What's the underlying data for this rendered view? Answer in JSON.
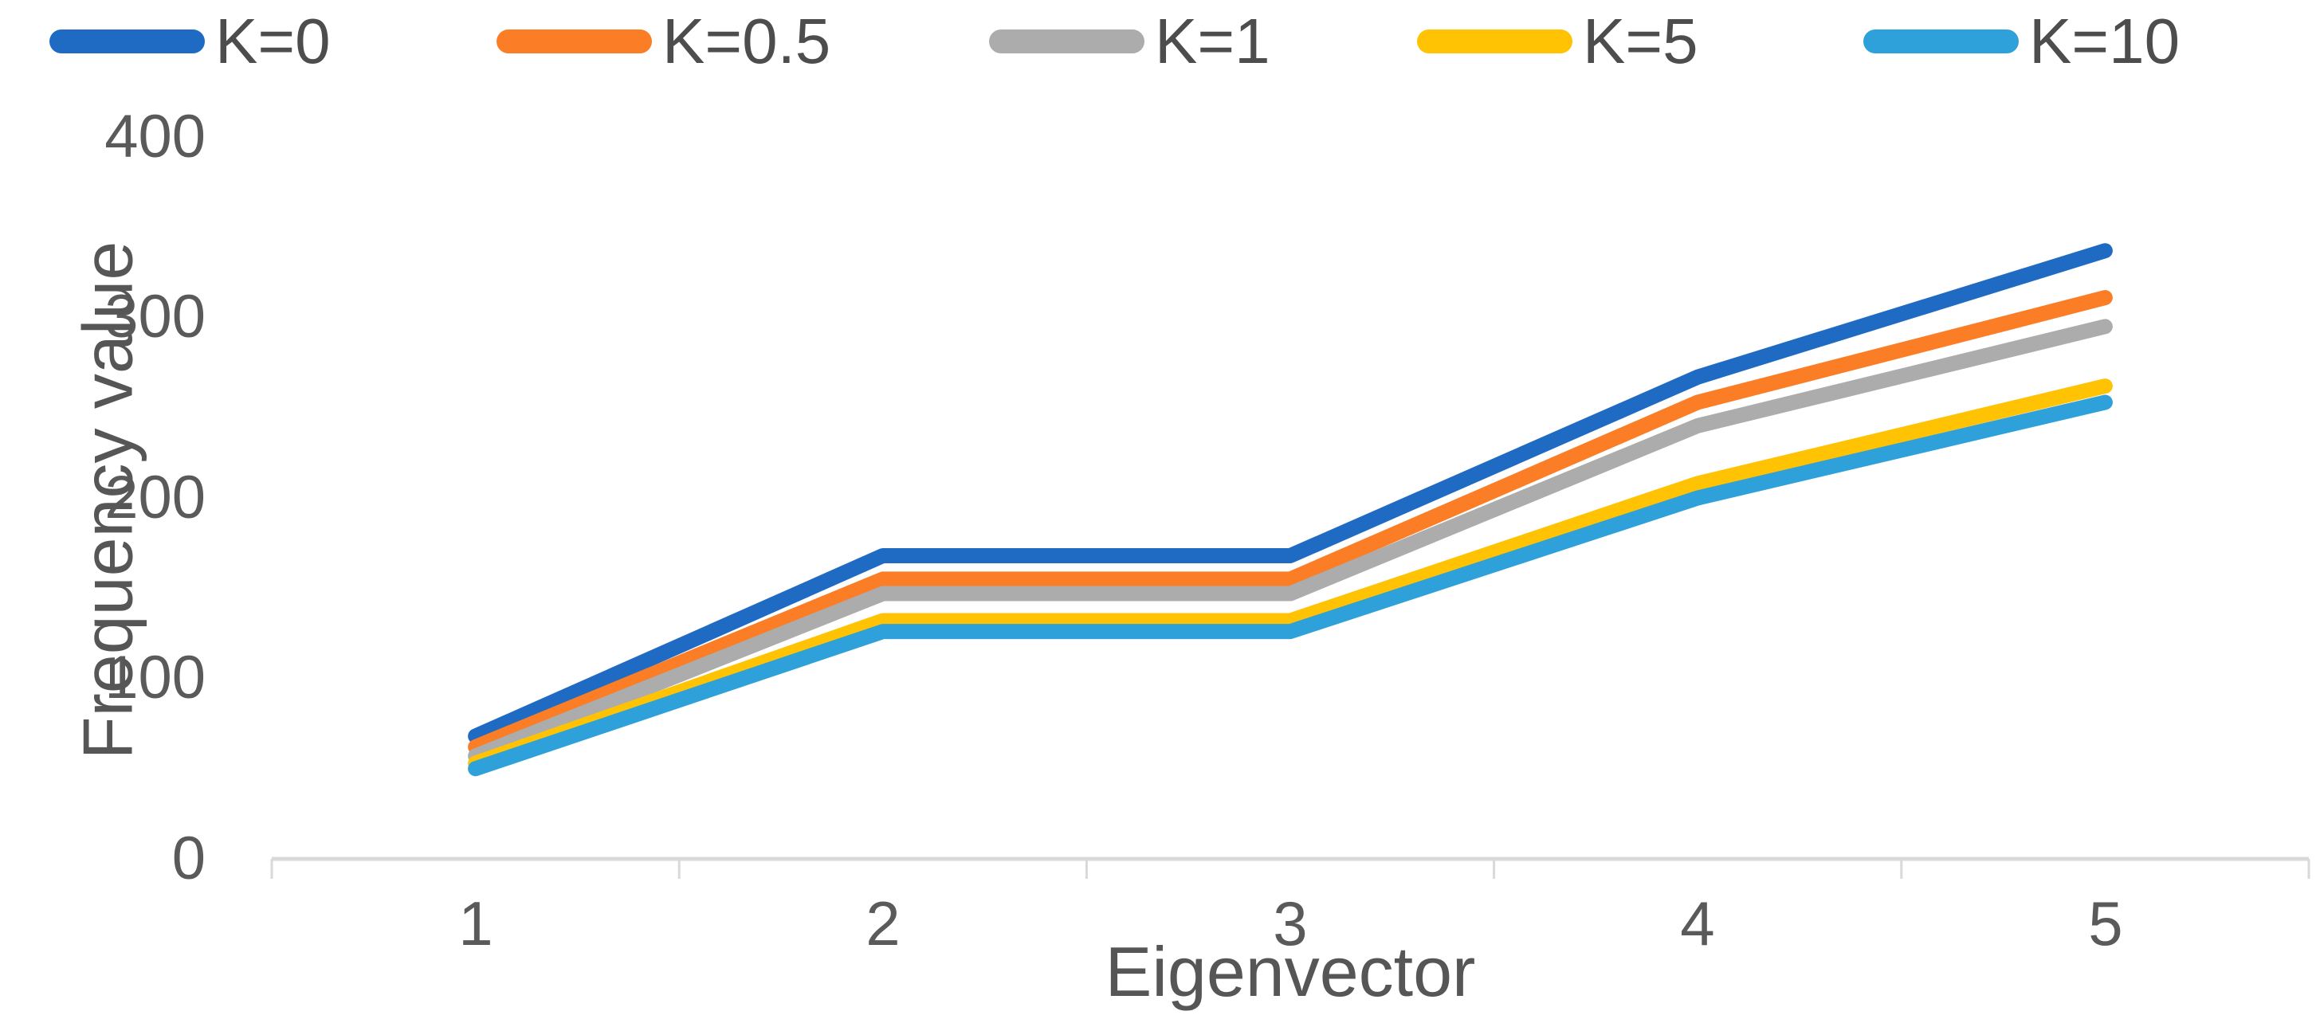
{
  "chart_data": {
    "type": "line",
    "title": "",
    "xlabel": "Eigenvector",
    "ylabel": "Frequency value",
    "x_categories": [
      "1",
      "2",
      "3",
      "4",
      "5"
    ],
    "yticks": [
      "400",
      "300",
      "200",
      "100",
      "0"
    ],
    "ylim": [
      0,
      400
    ],
    "grid": false,
    "legend_position": "top",
    "axis_color": "#d9d9d9",
    "text_color": "#565656",
    "series": [
      {
        "name": "K=0",
        "color": "#1f6bc4",
        "values": [
          68,
          168,
          168,
          267,
          337
        ]
      },
      {
        "name": "K=0.5",
        "color": "#fb7d26",
        "values": [
          62,
          155,
          155,
          253,
          311
        ]
      },
      {
        "name": "K=1",
        "color": "#acacac",
        "values": [
          57,
          147,
          147,
          240,
          295
        ]
      },
      {
        "name": "K=5",
        "color": "#ffc303",
        "values": [
          53,
          132,
          132,
          208,
          262
        ]
      },
      {
        "name": "K=10",
        "color": "#2ea1da",
        "values": [
          50,
          126,
          126,
          200,
          253
        ]
      }
    ]
  }
}
